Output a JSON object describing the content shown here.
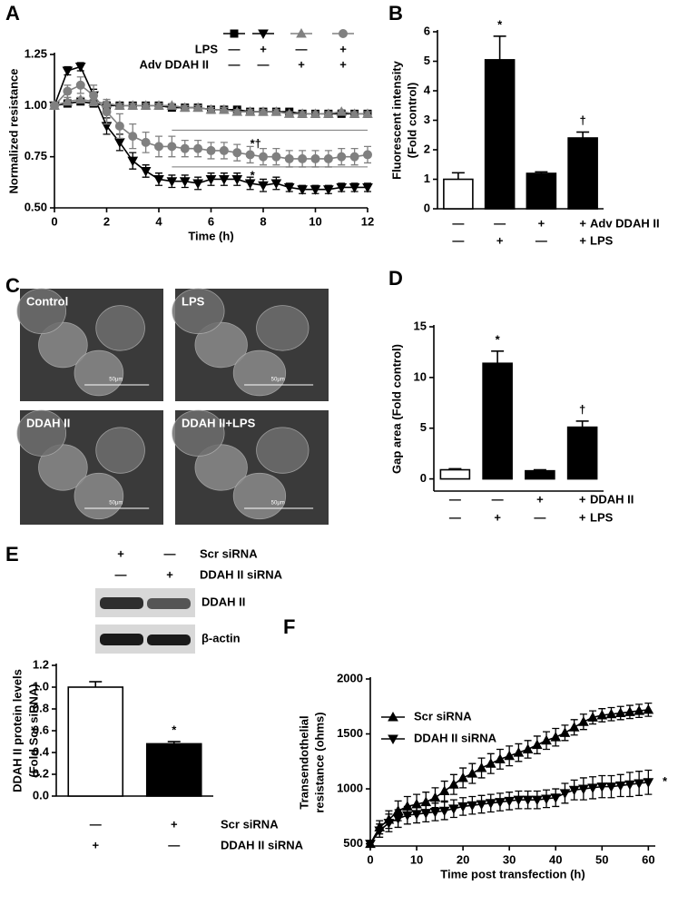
{
  "chart_data": [
    {
      "type": "line",
      "panel": "A",
      "xlabel": "Time (h)",
      "ylabel": [
        "Normalized resistance"
      ],
      "x": [
        0,
        0.5,
        1,
        1.5,
        2,
        2.5,
        3,
        3.5,
        4,
        4.5,
        5,
        5.5,
        6,
        6.5,
        7,
        7.5,
        8,
        8.5,
        9,
        9.5,
        10,
        10.5,
        11,
        11.5,
        12
      ],
      "xlim": [
        0,
        12
      ],
      "xticks": [
        0,
        2,
        4,
        6,
        8,
        10,
        12
      ],
      "ylim": [
        0.5,
        1.25
      ],
      "yticks": [
        {
          "value": 0.5,
          "label": "0.50"
        },
        {
          "value": 0.75,
          "label": "0.75"
        },
        {
          "value": 1.0,
          "label": "1.00"
        },
        {
          "value": 1.25,
          "label": "1.25"
        }
      ],
      "legend_conditions": [
        {
          "name": "LPS",
          "signs": [
            "—",
            "+",
            "—",
            "+"
          ]
        },
        {
          "name": "Adv DDAH II",
          "signs": [
            "—",
            "—",
            "+",
            "+"
          ]
        }
      ],
      "series": [
        {
          "marker": "square",
          "color": "#000000",
          "values": [
            1.0,
            1.01,
            1.02,
            1.01,
            1.0,
            1.0,
            1.0,
            1.0,
            1.0,
            0.99,
            0.99,
            0.99,
            0.98,
            0.98,
            0.98,
            0.97,
            0.97,
            0.97,
            0.97,
            0.96,
            0.96,
            0.96,
            0.96,
            0.96,
            0.96
          ],
          "errors": [
            0.015,
            0.015,
            0.015,
            0.015,
            0.015,
            0.015,
            0.015,
            0.015,
            0.015,
            0.015,
            0.015,
            0.015,
            0.015,
            0.015,
            0.015,
            0.015,
            0.015,
            0.015,
            0.015,
            0.015,
            0.015,
            0.015,
            0.015,
            0.015,
            0.015
          ]
        },
        {
          "marker": "triangle-down",
          "color": "#000000",
          "values": [
            1.0,
            1.17,
            1.19,
            1.05,
            0.9,
            0.82,
            0.73,
            0.68,
            0.64,
            0.63,
            0.63,
            0.62,
            0.64,
            0.64,
            0.64,
            0.62,
            0.61,
            0.62,
            0.6,
            0.59,
            0.59,
            0.59,
            0.6,
            0.6,
            0.6
          ],
          "errors": [
            0.01,
            0.02,
            0.02,
            0.03,
            0.04,
            0.04,
            0.04,
            0.03,
            0.03,
            0.03,
            0.03,
            0.03,
            0.03,
            0.03,
            0.03,
            0.03,
            0.03,
            0.03,
            0.02,
            0.02,
            0.02,
            0.02,
            0.02,
            0.02,
            0.02
          ]
        },
        {
          "marker": "triangle-up",
          "color": "#808080",
          "values": [
            1.0,
            1.02,
            1.03,
            1.02,
            1.01,
            1.0,
            1.0,
            1.0,
            1.0,
            1.0,
            0.99,
            0.99,
            0.98,
            0.98,
            0.97,
            0.97,
            0.97,
            0.97,
            0.96,
            0.96,
            0.96,
            0.96,
            0.97,
            0.96,
            0.96
          ],
          "errors": [
            0.01,
            0.01,
            0.01,
            0.01,
            0.01,
            0.01,
            0.01,
            0.01,
            0.01,
            0.01,
            0.01,
            0.01,
            0.01,
            0.01,
            0.01,
            0.01,
            0.01,
            0.01,
            0.01,
            0.01,
            0.01,
            0.01,
            0.01,
            0.01,
            0.01
          ]
        },
        {
          "marker": "circle",
          "color": "#808080",
          "values": [
            1.0,
            1.07,
            1.1,
            1.05,
            0.97,
            0.9,
            0.85,
            0.82,
            0.8,
            0.8,
            0.79,
            0.79,
            0.78,
            0.78,
            0.77,
            0.76,
            0.75,
            0.75,
            0.74,
            0.74,
            0.74,
            0.74,
            0.75,
            0.75,
            0.76
          ],
          "errors": [
            0.01,
            0.03,
            0.04,
            0.05,
            0.06,
            0.06,
            0.06,
            0.05,
            0.05,
            0.05,
            0.04,
            0.04,
            0.04,
            0.04,
            0.04,
            0.04,
            0.04,
            0.04,
            0.04,
            0.04,
            0.04,
            0.04,
            0.04,
            0.04,
            0.04
          ]
        }
      ],
      "annotations": [
        "*†",
        "*"
      ]
    },
    {
      "type": "bar",
      "panel": "B",
      "ylabel": [
        "Fluorescent intensity",
        "(Fold control)"
      ],
      "values": [
        1.0,
        5.05,
        1.2,
        2.4
      ],
      "errors": [
        0.22,
        0.8,
        0.05,
        0.2
      ],
      "colors": [
        "#ffffff",
        "#000000",
        "#000000",
        "#000000"
      ],
      "ylim": [
        0,
        6
      ],
      "yticks": [
        0,
        1,
        2,
        3,
        4,
        5,
        6
      ],
      "annotations": [
        null,
        "*",
        null,
        "†"
      ],
      "conditions": [
        {
          "name": "Adv DDAH II",
          "signs": [
            "—",
            "—",
            "+",
            "+"
          ]
        },
        {
          "name": "LPS",
          "signs": [
            "—",
            "+",
            "—",
            "+"
          ]
        }
      ]
    },
    {
      "type": "bar",
      "panel": "D",
      "ylabel": [
        "Gap area (Fold control)"
      ],
      "values": [
        0.9,
        11.4,
        0.8,
        5.1
      ],
      "errors": [
        0.1,
        1.2,
        0.1,
        0.6
      ],
      "colors": [
        "#ffffff",
        "#000000",
        "#000000",
        "#000000"
      ],
      "ylim": [
        -1.2,
        15
      ],
      "yticks": [
        0,
        5,
        10,
        15
      ],
      "annotations": [
        null,
        "*",
        null,
        "†"
      ],
      "conditions": [
        {
          "name": "DDAH II",
          "signs": [
            "—",
            "—",
            "+",
            "+"
          ]
        },
        {
          "name": "LPS",
          "signs": [
            "—",
            "+",
            "—",
            "+"
          ]
        }
      ]
    },
    {
      "type": "bar",
      "panel": "E",
      "ylabel": [
        "DDAH II protein levels",
        "(Fold Scr siRNA)"
      ],
      "values": [
        1.0,
        0.48
      ],
      "errors": [
        0.05,
        0.02
      ],
      "colors": [
        "#ffffff",
        "#000000"
      ],
      "ylim": [
        0,
        1.2
      ],
      "yticks": [
        {
          "value": 0,
          "label": "0.0"
        },
        {
          "value": 0.2,
          "label": "0.2"
        },
        {
          "value": 0.4,
          "label": "0.4"
        },
        {
          "value": 0.6,
          "label": "0.6"
        },
        {
          "value": 0.8,
          "label": "0.8"
        },
        {
          "value": 1.0,
          "label": "1.0"
        },
        {
          "value": 1.2,
          "label": "1.2"
        }
      ],
      "annotations": [
        null,
        "*"
      ],
      "conditions": [
        {
          "name": "Scr siRNA",
          "signs": [
            "—",
            "+"
          ]
        },
        {
          "name": "DDAH II siRNA",
          "signs": [
            "+",
            "—"
          ]
        }
      ],
      "blot": {
        "conditions": [
          {
            "name": "Scr siRNA",
            "signs": [
              "+",
              "—"
            ]
          },
          {
            "name": "DDAH II siRNA",
            "signs": [
              "—",
              "+"
            ]
          }
        ],
        "bands": [
          "DDAH II",
          "β-actin"
        ]
      }
    },
    {
      "type": "line",
      "panel": "F",
      "xlabel": "Time post transfection (h)",
      "ylabel": [
        "Transendothelial",
        "resistance (ohms)"
      ],
      "x": [
        0,
        2,
        4,
        6,
        8,
        10,
        12,
        14,
        16,
        18,
        20,
        22,
        24,
        26,
        28,
        30,
        32,
        34,
        36,
        38,
        40,
        42,
        44,
        46,
        48,
        50,
        52,
        54,
        56,
        58,
        60
      ],
      "xlim": [
        0,
        61.5
      ],
      "xticks": [
        0,
        10,
        20,
        30,
        40,
        50,
        60
      ],
      "ylim": [
        480,
        2000
      ],
      "yticks": [
        500,
        1000,
        1500,
        2000
      ],
      "series": [
        {
          "name": "Scr siRNA",
          "marker": "triangle-up",
          "color": "#000000",
          "values": [
            500,
            650,
            720,
            800,
            840,
            860,
            880,
            920,
            980,
            1040,
            1100,
            1140,
            1190,
            1230,
            1270,
            1300,
            1330,
            1360,
            1400,
            1440,
            1470,
            1510,
            1560,
            1610,
            1650,
            1670,
            1680,
            1690,
            1700,
            1710,
            1720
          ],
          "errors": [
            20,
            60,
            80,
            90,
            90,
            90,
            90,
            90,
            90,
            90,
            90,
            90,
            90,
            90,
            90,
            90,
            80,
            80,
            80,
            80,
            80,
            70,
            70,
            70,
            60,
            60,
            60,
            60,
            60,
            60,
            60
          ]
        },
        {
          "name": "DDAH II siRNA",
          "marker": "triangle-down",
          "color": "#000000",
          "values": [
            500,
            620,
            690,
            730,
            760,
            770,
            780,
            790,
            800,
            820,
            840,
            850,
            860,
            870,
            880,
            890,
            900,
            900,
            900,
            910,
            920,
            960,
            990,
            1000,
            1010,
            1020,
            1020,
            1030,
            1040,
            1050,
            1060
          ],
          "errors": [
            20,
            60,
            80,
            80,
            80,
            80,
            80,
            80,
            80,
            80,
            80,
            80,
            80,
            80,
            80,
            80,
            80,
            80,
            80,
            80,
            80,
            90,
            90,
            100,
            100,
            100,
            100,
            100,
            110,
            110,
            110
          ]
        }
      ],
      "annotations": [
        "*"
      ]
    }
  ],
  "panel_c": {
    "panel": "C",
    "images": [
      {
        "label": "Control",
        "scale": "50μm"
      },
      {
        "label": "LPS",
        "scale": "50μm"
      },
      {
        "label": "DDAH II",
        "scale": "50μm"
      },
      {
        "label": "DDAH II+LPS",
        "scale": "50μm"
      }
    ]
  }
}
